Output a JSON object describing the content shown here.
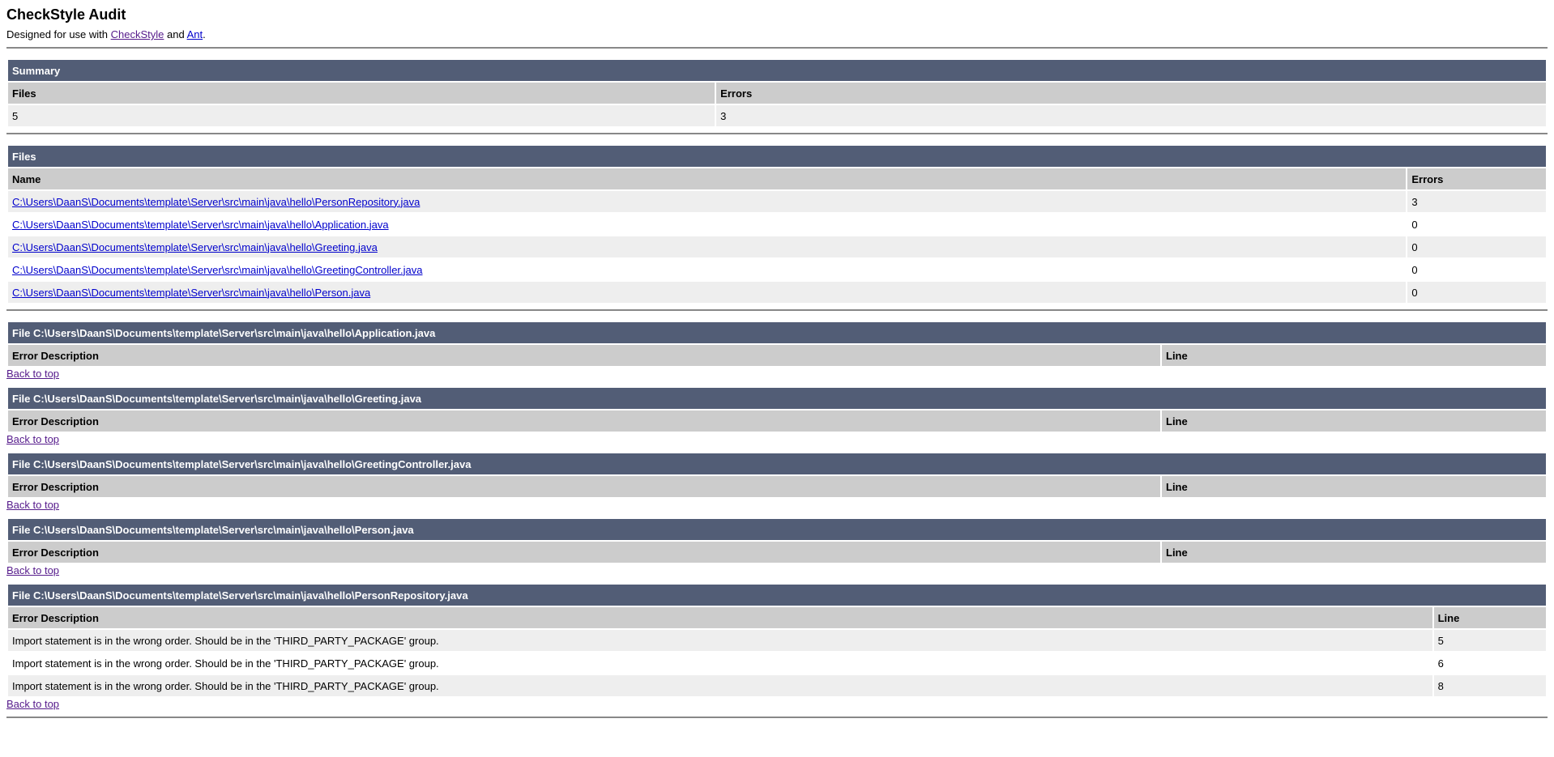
{
  "header": {
    "title": "CheckStyle Audit",
    "designed_prefix": "Designed for use with ",
    "checkstyle_link": "CheckStyle",
    "and_text": " and ",
    "ant_link": "Ant",
    "period": "."
  },
  "summary": {
    "title": "Summary",
    "col_files": "Files",
    "col_errors": "Errors",
    "files": "5",
    "errors": "3"
  },
  "files": {
    "title": "Files",
    "col_name": "Name",
    "col_errors": "Errors",
    "rows": [
      {
        "name": "C:\\Users\\DaanS\\Documents\\template\\Server\\src\\main\\java\\hello\\PersonRepository.java",
        "errors": "3"
      },
      {
        "name": "C:\\Users\\DaanS\\Documents\\template\\Server\\src\\main\\java\\hello\\Application.java",
        "errors": "0"
      },
      {
        "name": "C:\\Users\\DaanS\\Documents\\template\\Server\\src\\main\\java\\hello\\Greeting.java",
        "errors": "0"
      },
      {
        "name": "C:\\Users\\DaanS\\Documents\\template\\Server\\src\\main\\java\\hello\\GreetingController.java",
        "errors": "0"
      },
      {
        "name": "C:\\Users\\DaanS\\Documents\\template\\Server\\src\\main\\java\\hello\\Person.java",
        "errors": "0"
      }
    ]
  },
  "details": {
    "col_desc": "Error Description",
    "col_line": "Line",
    "back_to_top": "Back to top",
    "sections": [
      {
        "title": "File C:\\Users\\DaanS\\Documents\\template\\Server\\src\\main\\java\\hello\\Application.java",
        "errors": []
      },
      {
        "title": "File C:\\Users\\DaanS\\Documents\\template\\Server\\src\\main\\java\\hello\\Greeting.java",
        "errors": []
      },
      {
        "title": "File C:\\Users\\DaanS\\Documents\\template\\Server\\src\\main\\java\\hello\\GreetingController.java",
        "errors": []
      },
      {
        "title": "File C:\\Users\\DaanS\\Documents\\template\\Server\\src\\main\\java\\hello\\Person.java",
        "errors": []
      },
      {
        "title": "File C:\\Users\\DaanS\\Documents\\template\\Server\\src\\main\\java\\hello\\PersonRepository.java",
        "errors": [
          {
            "description": "Import statement is in the wrong order. Should be in the 'THIRD_PARTY_PACKAGE' group.",
            "line": "5"
          },
          {
            "description": "Import statement is in the wrong order. Should be in the 'THIRD_PARTY_PACKAGE' group.",
            "line": "6"
          },
          {
            "description": "Import statement is in the wrong order. Should be in the 'THIRD_PARTY_PACKAGE' group.",
            "line": "8"
          }
        ]
      }
    ]
  }
}
